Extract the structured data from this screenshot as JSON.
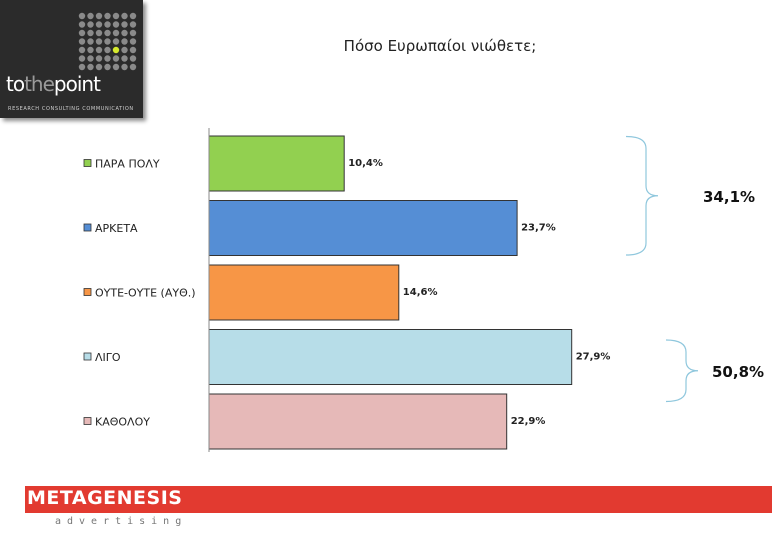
{
  "logo": {
    "word_start": "to",
    "word_mid": "the",
    "word_end": "point",
    "tagline": "RESEARCH CONSULTING COMMUNICATION"
  },
  "chart_data": {
    "type": "bar",
    "orientation": "horizontal",
    "title": "Πόσο Ευρωπαίοι νιώθετε;",
    "categories": [
      "ΠΑΡΑ ΠΟΛΥ",
      "ΑΡΚΕΤΑ",
      "ΟΥΤΕ-ΟΥΤΕ (ΑΥΘ.)",
      "ΛΙΓΟ",
      "ΚΑΘΟΛΟΥ"
    ],
    "values": [
      10.4,
      23.7,
      14.6,
      27.9,
      22.9
    ],
    "value_labels": [
      "10,4%",
      "23,7%",
      "14,6%",
      "27,9%",
      "22,9%"
    ],
    "colors": [
      "#92d050",
      "#558ed5",
      "#f79646",
      "#b7dde8",
      "#e6b9b8"
    ],
    "xlim": [
      0,
      30
    ],
    "legend": "left",
    "grid": false,
    "groups": [
      {
        "label": "34,1%",
        "from": 0,
        "to": 1
      },
      {
        "label": "50,8%",
        "from": 3,
        "to": 4
      }
    ],
    "group_brace_color": "#8fc7dd"
  },
  "footer": {
    "brand": "METAGENESIS",
    "sub": "advertising"
  }
}
